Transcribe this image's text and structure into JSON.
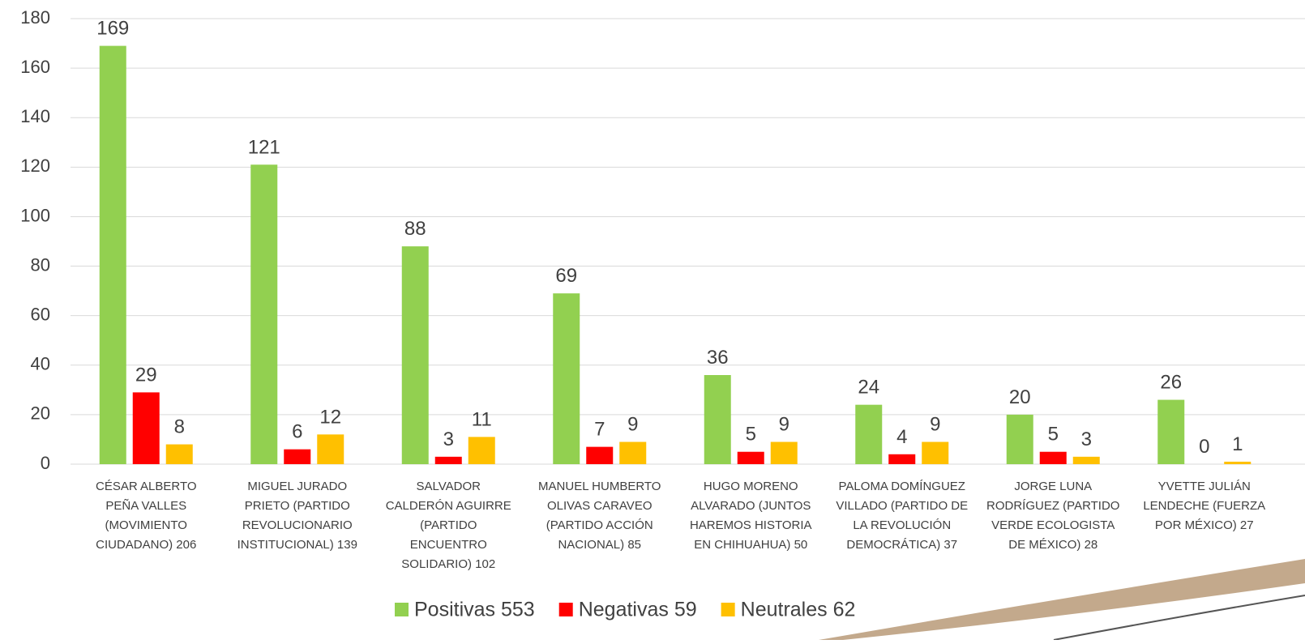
{
  "chart_data": {
    "type": "bar",
    "categories": [
      "CÉSAR ALBERTO PEÑA VALLES (MOVIMIENTO CIUDADANO) 206",
      "MIGUEL JURADO PRIETO (PARTIDO REVOLUCIONARIO INSTITUCIONAL) 139",
      "SALVADOR CALDERÓN AGUIRRE (PARTIDO ENCUENTRO SOLIDARIO) 102",
      "MANUEL HUMBERTO OLIVAS CARAVEO (PARTIDO ACCIÓN NACIONAL) 85",
      "HUGO MORENO ALVARADO (JUNTOS HAREMOS HISTORIA EN CHIHUAHUA) 50",
      "PALOMA DOMÍNGUEZ VILLADO (PARTIDO DE LA REVOLUCIÓN DEMOCRÁTICA) 37",
      "JORGE LUNA RODRÍGUEZ (PARTIDO VERDE ECOLOGISTA DE MÉXICO) 28",
      "YVETTE JULIÁN LENDECHE (FUERZA POR MÉXICO) 27"
    ],
    "series": [
      {
        "name": "Positivas 553",
        "color": "#92d050",
        "values": [
          169,
          121,
          88,
          69,
          36,
          24,
          20,
          26
        ]
      },
      {
        "name": "Negativas 59",
        "color": "#ff0000",
        "values": [
          29,
          6,
          3,
          7,
          5,
          4,
          5,
          0
        ]
      },
      {
        "name": "Neutrales 62",
        "color": "#ffc000",
        "values": [
          8,
          12,
          11,
          9,
          9,
          9,
          3,
          1
        ]
      }
    ],
    "ylim": [
      0,
      180
    ],
    "yticks": [
      0,
      20,
      40,
      60,
      80,
      100,
      120,
      140,
      160,
      180
    ],
    "grid": true,
    "legend": "bottom"
  }
}
